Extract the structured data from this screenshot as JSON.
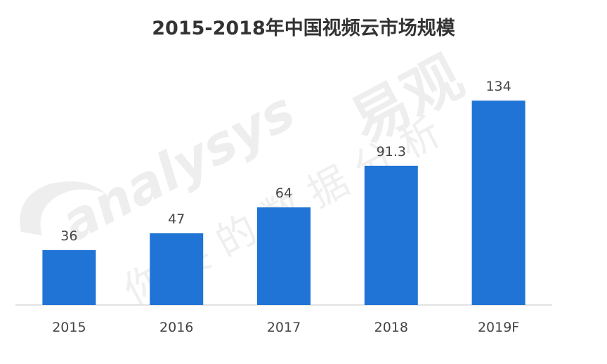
{
  "chart_data": {
    "type": "bar",
    "title": "2015-2018年中国视频云市场规模",
    "categories": [
      "2015",
      "2016",
      "2017",
      "2018",
      "2019F"
    ],
    "values": [
      36,
      47,
      64,
      91.3,
      134
    ],
    "value_labels": [
      "36",
      "47",
      "64",
      "91.3",
      "134"
    ],
    "xlabel": "",
    "ylabel": "",
    "ylim": [
      0,
      140
    ],
    "grid": false,
    "legend": "none",
    "bar_color": "#1f74d6",
    "baseline_color": "#d9d9d9"
  },
  "watermark": {
    "brand_latin": "analysys",
    "brand_cn": "易观",
    "slogan": "你要的数据分析",
    "color": "#eeeeee"
  }
}
